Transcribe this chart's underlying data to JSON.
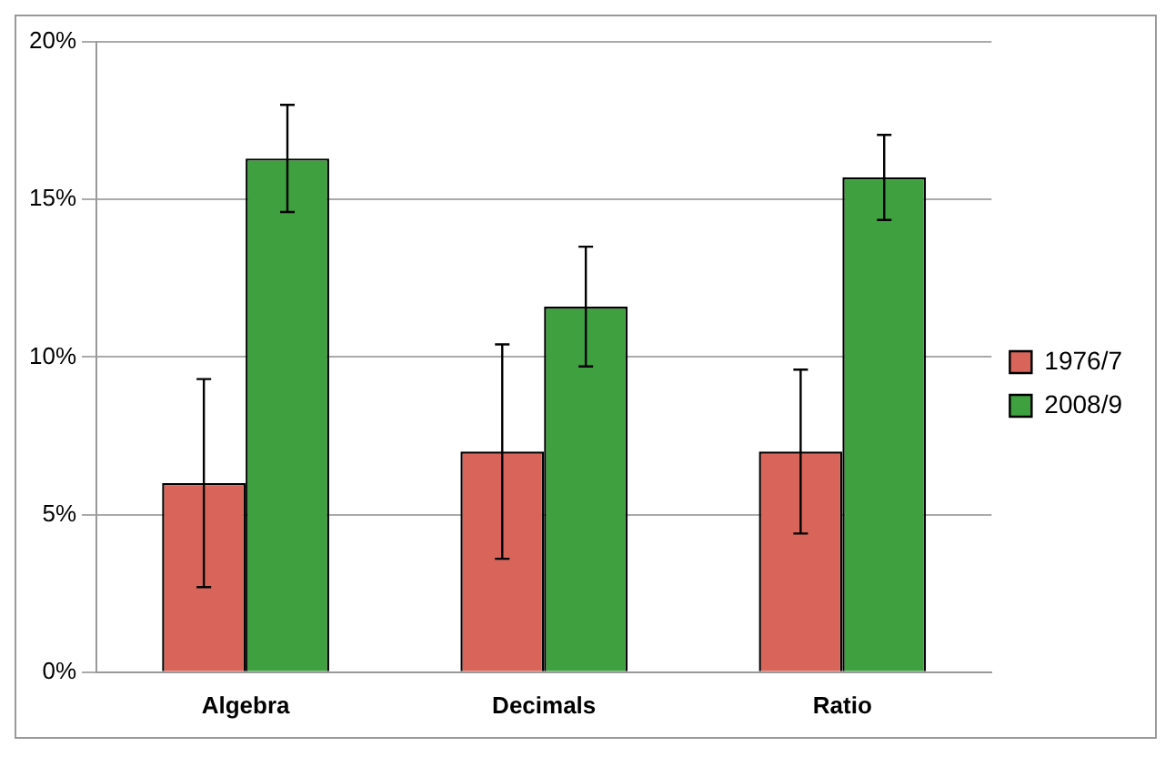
{
  "chart_data": {
    "type": "bar",
    "categories": [
      "Algebra",
      "Decimals",
      "Ratio"
    ],
    "series": [
      {
        "name": "1976/7",
        "color": "#d9655a",
        "values": [
          6.0,
          7.0,
          7.0
        ],
        "errors": [
          3.3,
          3.4,
          2.6
        ]
      },
      {
        "name": "2008/9",
        "color": "#3fa03f",
        "values": [
          16.3,
          11.6,
          15.7
        ],
        "errors": [
          1.7,
          1.9,
          1.35
        ]
      }
    ],
    "ylim": [
      0,
      20
    ],
    "yticks": [
      {
        "value": 0,
        "label": "0%"
      },
      {
        "value": 5,
        "label": "5%"
      },
      {
        "value": 10,
        "label": "10%"
      },
      {
        "value": 15,
        "label": "15%"
      },
      {
        "value": 20,
        "label": "20%"
      }
    ],
    "grid": "y",
    "legend": "right"
  }
}
